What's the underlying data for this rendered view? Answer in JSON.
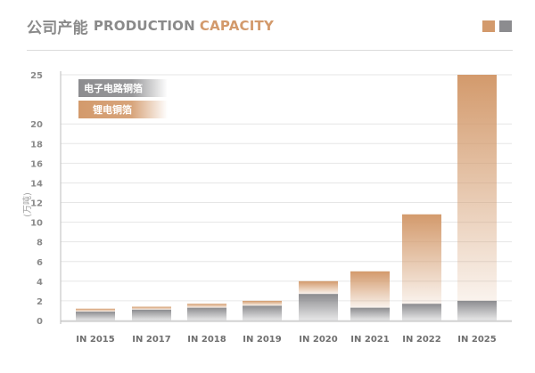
{
  "header": {
    "title_zh": "公司产能",
    "title_gray": "PRODUCTION",
    "title_accent": "CAPACITY"
  },
  "colors": {
    "copper": "#d39a6c",
    "gray": "#8c8c8f",
    "grid": "#e6e6e6"
  },
  "chart_data": {
    "type": "bar",
    "stacked": true,
    "title": "公司产能 PRODUCTION CAPACITY",
    "xlabel": "",
    "ylabel": "(万吨)",
    "ylim": [
      0,
      25
    ],
    "yticks": [
      0,
      2,
      4,
      6,
      8,
      10,
      12,
      14,
      16,
      18,
      20,
      25
    ],
    "grid": true,
    "legend_placement": "top-left",
    "categories": [
      "IN 2015",
      "IN 2017",
      "IN 2018",
      "IN 2019",
      "IN 2020",
      "IN 2021",
      "IN 2022",
      "IN 2025"
    ],
    "series": [
      {
        "name": "电子电路铜箔",
        "color": "#8c8c8f",
        "values": [
          0.9,
          1.1,
          1.3,
          1.5,
          2.7,
          1.3,
          1.7,
          2.0
        ]
      },
      {
        "name": "锂电铜箔",
        "color": "#d39a6c",
        "values": [
          0.3,
          0.3,
          0.4,
          0.5,
          1.3,
          3.7,
          9.1,
          23.0
        ]
      }
    ]
  }
}
